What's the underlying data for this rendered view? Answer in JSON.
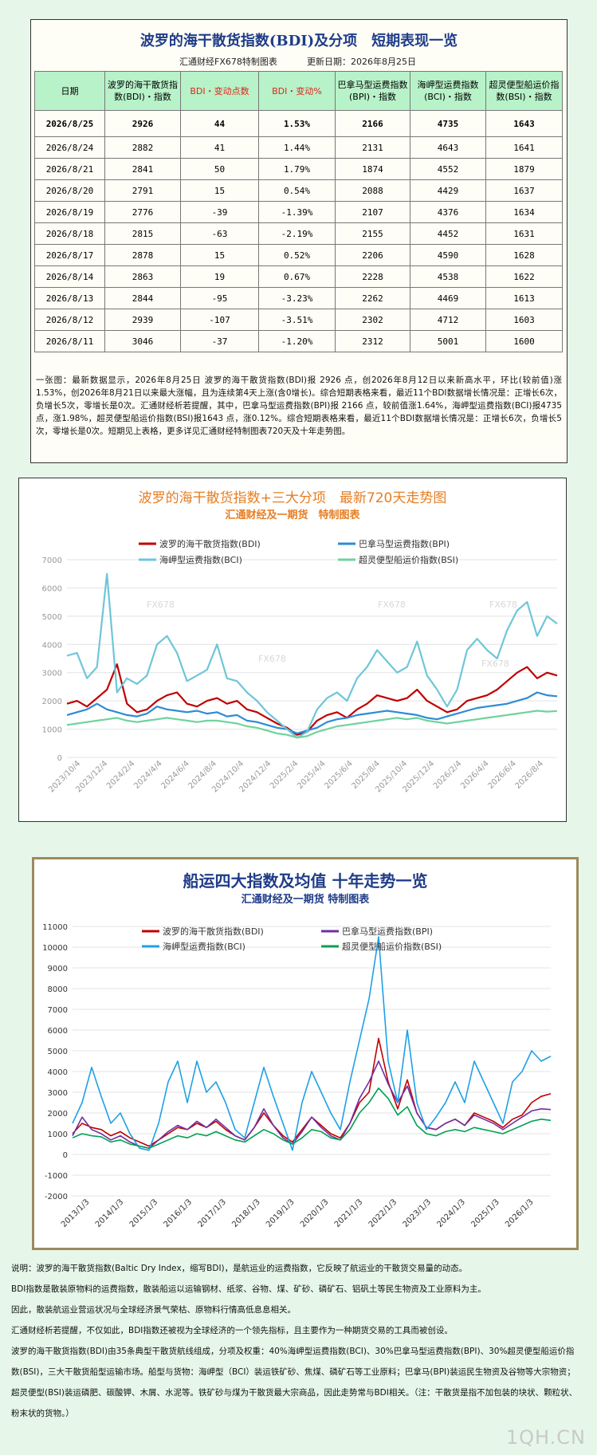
{
  "table_section": {
    "title": "波罗的海干散货指数(BDI)及分项　短期表现一览",
    "maker": "汇通财经FX678特制图表",
    "update_date": "更新日期：2026年8月25日",
    "headers": [
      "日期",
      "波罗的海干散货指数(BDI)・指数",
      "BDI・变动点数",
      "BDI・变动%",
      "巴拿马型运费指数(BPI)・指数",
      "海岬型运费指数(BCI)・指数",
      "超灵便型船运价指数(BSI)・指数"
    ],
    "rows": [
      [
        "2026/8/25",
        "2926",
        "44",
        "1.53%",
        "2166",
        "4735",
        "1643"
      ],
      [
        "2026/8/24",
        "2882",
        "41",
        "1.44%",
        "2131",
        "4643",
        "1641"
      ],
      [
        "2026/8/21",
        "2841",
        "50",
        "1.79%",
        "1874",
        "4552",
        "1879"
      ],
      [
        "2026/8/20",
        "2791",
        "15",
        "0.54%",
        "2088",
        "4429",
        "1637"
      ],
      [
        "2026/8/19",
        "2776",
        "-39",
        "-1.39%",
        "2107",
        "4376",
        "1634"
      ],
      [
        "2026/8/18",
        "2815",
        "-63",
        "-2.19%",
        "2155",
        "4452",
        "1631"
      ],
      [
        "2026/8/17",
        "2878",
        "15",
        "0.52%",
        "2206",
        "4590",
        "1628"
      ],
      [
        "2026/8/14",
        "2863",
        "19",
        "0.67%",
        "2228",
        "4538",
        "1622"
      ],
      [
        "2026/8/13",
        "2844",
        "-95",
        "-3.23%",
        "2262",
        "4469",
        "1613"
      ],
      [
        "2026/8/12",
        "2939",
        "-107",
        "-3.51%",
        "2302",
        "4712",
        "1603"
      ],
      [
        "2026/8/11",
        "3046",
        "-37",
        "-1.20%",
        "2312",
        "5001",
        "1600"
      ]
    ],
    "note": "一张图：最新数据显示，2026年8月25日 波罗的海干散货指数(BDI)报 2926 点，创2026年8月12日以来新高水平，环比(较前值)涨1.53%，创2026年8月21日以来最大涨幅，且为连续第4天上涨(含0增长)。综合短期表格来看，最近11个BDI数据增长情况是：正增长6次，负增长5次，零增长是0次。汇通财经析若提醒，其中，巴拿马型运费指数(BPI)报 2166 点，较前值涨1.64%，海岬型运费指数(BCI)报4735 点，涨1.98%，超灵便型船运价指数(BSI)报1643 点，涨0.12%。综合短期表格来看，最近11个BDI数据增长情况是：正增长6次，负增长5次，零增长是0次。短期见上表格，更多详见汇通财经特制图表720天及十年走势图。"
  },
  "chart1_section": {
    "watermark": "FX678"
  },
  "chart_data": [
    {
      "type": "line",
      "title": "波罗的海干散货指数+三大分项　最新720天走势图",
      "subtitle": "汇通财经及一期货　特制图表",
      "xlabel": "",
      "ylabel": "",
      "ylim": [
        0,
        7000
      ],
      "yticks": [
        0,
        1000,
        2000,
        3000,
        4000,
        5000,
        6000,
        7000
      ],
      "xticks": [
        "2023/10/4",
        "2023/12/4",
        "2024/2/4",
        "2024/4/4",
        "2024/6/4",
        "2024/8/4",
        "2024/10/4",
        "2024/12/4",
        "2025/2/4",
        "2025/4/4",
        "2025/6/4",
        "2025/8/4",
        "2025/10/4",
        "2025/12/4",
        "2026/2/4",
        "2026/4/4",
        "2026/6/4",
        "2026/8/4"
      ],
      "grid": true,
      "legend_position": "top",
      "series": [
        {
          "name": "波罗的海干散货指数(BDI)",
          "color": "#c00000",
          "values": [
            1900,
            2000,
            1800,
            2100,
            2400,
            3300,
            1900,
            1600,
            1700,
            2000,
            2200,
            2300,
            1900,
            1800,
            2000,
            2100,
            1900,
            2000,
            1700,
            1600,
            1400,
            1200,
            1050,
            800,
            900,
            1300,
            1500,
            1600,
            1400,
            1700,
            1900,
            2200,
            2100,
            2000,
            2100,
            2400,
            2000,
            1800,
            1600,
            1700,
            2000,
            2100,
            2200,
            2400,
            2700,
            3000,
            3200,
            2800,
            3000,
            2900
          ]
        },
        {
          "name": "巴拿马型运费指数(BPI)",
          "color": "#2e8bd6",
          "values": [
            1500,
            1600,
            1700,
            1900,
            1700,
            1600,
            1500,
            1450,
            1550,
            1800,
            1700,
            1650,
            1600,
            1650,
            1550,
            1600,
            1450,
            1500,
            1300,
            1250,
            1150,
            1050,
            1000,
            850,
            950,
            1050,
            1250,
            1350,
            1400,
            1500,
            1550,
            1600,
            1650,
            1600,
            1550,
            1500,
            1400,
            1350,
            1450,
            1550,
            1650,
            1750,
            1800,
            1850,
            1900,
            2000,
            2100,
            2300,
            2200,
            2166
          ]
        },
        {
          "name": "海岬型运费指数(BCI)",
          "color": "#6ec6d8",
          "values": [
            3600,
            3700,
            2800,
            3200,
            6500,
            2300,
            2800,
            2600,
            2900,
            4000,
            4300,
            3700,
            2700,
            2900,
            3100,
            4000,
            2800,
            2700,
            2300,
            2000,
            1600,
            1300,
            1000,
            700,
            900,
            1700,
            2100,
            2300,
            2000,
            2800,
            3200,
            3800,
            3400,
            3000,
            3200,
            4100,
            2900,
            2400,
            1800,
            2400,
            3800,
            4200,
            3800,
            3500,
            4500,
            5200,
            5500,
            4300,
            5000,
            4735
          ]
        },
        {
          "name": "超灵便型船运价指数(BSI)",
          "color": "#6fd39c",
          "values": [
            1150,
            1200,
            1250,
            1300,
            1350,
            1400,
            1300,
            1250,
            1300,
            1350,
            1400,
            1350,
            1300,
            1250,
            1300,
            1300,
            1250,
            1200,
            1100,
            1050,
            950,
            850,
            800,
            700,
            750,
            900,
            1000,
            1100,
            1150,
            1200,
            1250,
            1300,
            1350,
            1400,
            1350,
            1400,
            1300,
            1250,
            1200,
            1250,
            1300,
            1350,
            1400,
            1450,
            1500,
            1550,
            1600,
            1650,
            1620,
            1643
          ]
        }
      ]
    },
    {
      "type": "line",
      "title": "船运四大指数及均值 十年走势一览",
      "subtitle": "汇通财经及一期货 特制图表",
      "xlabel": "",
      "ylabel": "",
      "ylim": [
        -2000,
        11000
      ],
      "yticks": [
        -2000,
        -1000,
        0,
        1000,
        2000,
        3000,
        4000,
        5000,
        6000,
        7000,
        8000,
        9000,
        10000,
        11000
      ],
      "xticks": [
        "2013/1/3",
        "2014/1/3",
        "2015/1/3",
        "2016/1/3",
        "2017/1/3",
        "2018/1/3",
        "2019/1/3",
        "2020/1/3",
        "2021/1/3",
        "2022/1/3",
        "2023/1/3",
        "2024/1/3",
        "2025/1/3",
        "2026/1/3"
      ],
      "grid": true,
      "legend_position": "top",
      "series": [
        {
          "name": "波罗的海干散货指数(BDI)",
          "color": "#c00000",
          "values": [
            1000,
            1500,
            1300,
            1200,
            900,
            1100,
            800,
            600,
            400,
            700,
            1000,
            1300,
            1200,
            1500,
            1300,
            1600,
            1200,
            900,
            700,
            1300,
            2000,
            1400,
            900,
            600,
            1200,
            1800,
            1400,
            1000,
            800,
            1500,
            2500,
            3000,
            5600,
            3500,
            2200,
            3600,
            2000,
            1300,
            1200,
            1500,
            1700,
            1400,
            2000,
            1800,
            1600,
            1300,
            1700,
            1900,
            2500,
            2800,
            2926
          ]
        },
        {
          "name": "巴拿马型运费指数(BPI)",
          "color": "#7030a0",
          "values": [
            900,
            1800,
            1200,
            1000,
            700,
            900,
            600,
            400,
            300,
            700,
            1100,
            1400,
            1200,
            1600,
            1300,
            1700,
            1300,
            900,
            700,
            1300,
            2200,
            1400,
            800,
            500,
            1100,
            1800,
            1300,
            900,
            700,
            1500,
            2700,
            3500,
            4500,
            3400,
            2500,
            3300,
            2000,
            1300,
            1200,
            1500,
            1700,
            1400,
            1900,
            1700,
            1500,
            1200,
            1500,
            1800,
            2100,
            2200,
            2166
          ]
        },
        {
          "name": "海岬型运费指数(BCI)",
          "color": "#1ea0e6",
          "values": [
            1500,
            2500,
            4200,
            2800,
            1500,
            2000,
            1000,
            300,
            200,
            1500,
            3500,
            4500,
            2500,
            4500,
            3000,
            3500,
            2500,
            1200,
            800,
            2500,
            4200,
            2800,
            1500,
            200,
            2500,
            4000,
            3000,
            2000,
            1200,
            3500,
            5500,
            7500,
            10500,
            4500,
            2500,
            6000,
            2500,
            1200,
            1800,
            2500,
            3500,
            2500,
            4500,
            3500,
            2500,
            1500,
            3500,
            4000,
            5000,
            4500,
            4735
          ]
        },
        {
          "name": "超灵便型船运价指数(BSI)",
          "color": "#00a050",
          "values": [
            800,
            1000,
            900,
            850,
            600,
            700,
            500,
            400,
            300,
            500,
            700,
            900,
            800,
            1000,
            900,
            1100,
            900,
            700,
            600,
            900,
            1200,
            1000,
            700,
            500,
            800,
            1200,
            1100,
            800,
            700,
            1200,
            2000,
            2500,
            3200,
            2700,
            1900,
            2300,
            1400,
            1000,
            900,
            1100,
            1200,
            1100,
            1300,
            1200,
            1100,
            1000,
            1200,
            1400,
            1600,
            1700,
            1643
          ]
        }
      ]
    }
  ],
  "description": [
    "说明：波罗的海干散货指数(Baltic Dry Index，缩写BDI)，是航运业的运费指数，它反映了航运业的干散货交易量的动态。",
    "BDI指数是散装原物料的运费指数，散装船运以运输钢材、纸浆、谷物、煤、矿砂、磷矿石、铝矾土等民生物资及工业原料为主。",
    "因此，散装航运业营运状况与全球经济景气荣枯、原物料行情高低息息相关。",
    "汇通财经析若提醒，不仅如此，BDI指数还被视为全球经济的一个领先指标，且主要作为一种期货交易的工具而被创设。",
    "波罗的海干散货指数(BDI)由35条典型干散货航线组成，分项及权重：40%海岬型运费指数(BCI)、30%巴拿马型运费指数(BPI)、30%超灵便型船运价指数(BSI)，三大干散货船型运输市场。船型与货物：海岬型（BCI）装运铁矿砂、焦煤、磷矿石等工业原料；巴拿马(BPI)装运民生物资及谷物等大宗物资；超灵便型(BSI)装运磷肥、碳酸钾、木屑、水泥等。铁矿砂与煤为干散货最大宗商品，因此走势常与BDI相关。（注：干散货是指不加包装的块状、颗粒状、粉末状的货物。）"
  ],
  "site_mark": "1QH.CN"
}
